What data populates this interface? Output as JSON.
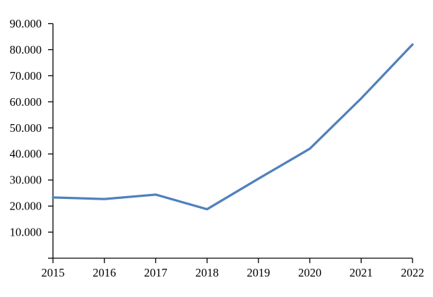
{
  "chart_data": {
    "type": "line",
    "title": "",
    "categories": [
      "2015",
      "2016",
      "2017",
      "2018",
      "2019",
      "2020",
      "2021",
      "2022"
    ],
    "series": [
      {
        "color": "#4F81BD",
        "values": [
          23300,
          22700,
          24400,
          18800,
          30500,
          42000,
          61300,
          82000
        ]
      }
    ],
    "xlabel": "",
    "ylabel": "",
    "ylim": [
      0,
      90000
    ],
    "y_tick_interval": 10000,
    "y_tick_labels": [
      "10.000",
      "20.000",
      "30.000",
      "40.000",
      "50.000",
      "60.000",
      "70.000",
      "80.000",
      "90.000"
    ],
    "grid": "off",
    "legend": "none",
    "axis_color": "#000000",
    "background": "#FFFFFF"
  }
}
